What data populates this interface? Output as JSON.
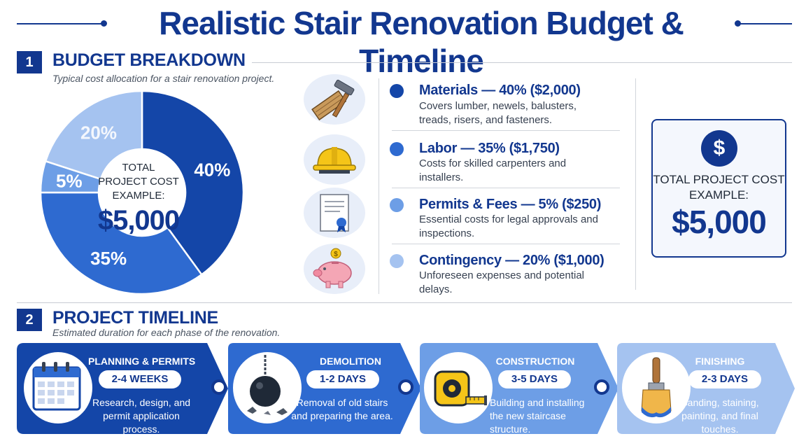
{
  "title": "Realistic Stair Renovation Budget & Timeline",
  "budget": {
    "number": "1",
    "heading": "BUDGET BREAKDOWN",
    "subtitle": "Typical cost allocation for a stair renovation project.",
    "center_label": "TOTAL PROJECT COST EXAMPLE:",
    "center_value": "$5,000",
    "items": [
      {
        "title": "Materials — 40% ($2,000)",
        "desc": "Covers lumber, newels, balusters, treads, risers, and fasteners.",
        "percent": 40,
        "percent_label": "40%",
        "color": "#1446a8",
        "icon": "wood-hammer-icon"
      },
      {
        "title": "Labor — 35% ($1,750)",
        "desc": "Costs for skilled carpenters and installers.",
        "percent": 35,
        "percent_label": "35%",
        "color": "#2e6ad0",
        "icon": "hard-hat-icon"
      },
      {
        "title": "Permits & Fees — 5% ($250)",
        "desc": "Essential costs for legal approvals and inspections.",
        "percent": 5,
        "percent_label": "5%",
        "color": "#6d9ee6",
        "icon": "certificate-icon"
      },
      {
        "title": "Contingency — 20% ($1,000)",
        "desc": "Unforeseen expenses and potential delays.",
        "percent": 20,
        "percent_label": "20%",
        "color": "#a5c3f0",
        "icon": "piggy-bank-icon"
      }
    ]
  },
  "total_card": {
    "icon": "dollar-icon",
    "label": "TOTAL PROJECT COST EXAMPLE:",
    "value": "$5,000"
  },
  "timeline": {
    "number": "2",
    "heading": "PROJECT TIMELINE",
    "subtitle": "Estimated duration for each phase of the renovation.",
    "phases": [
      {
        "title": "PLANNING & PERMITS",
        "duration": "2-4 WEEKS",
        "desc": "Research, design, and permit application process.",
        "color": "#1446a8",
        "icon": "calendar-icon"
      },
      {
        "title": "DEMOLITION",
        "duration": "1-2 DAYS",
        "desc": "Removal of old stairs and preparing the area.",
        "color": "#2e6ad0",
        "icon": "wrecking-ball-icon"
      },
      {
        "title": "CONSTRUCTION",
        "duration": "3-5 DAYS",
        "desc": "Building and installing the new staircase structure.",
        "color": "#6d9ee6",
        "icon": "tape-measure-icon"
      },
      {
        "title": "FINISHING",
        "duration": "2-3 DAYS",
        "desc": "Sanding, staining, painting, and final touches.",
        "color": "#a5c3f0",
        "icon": "paintbrush-icon"
      }
    ]
  }
}
